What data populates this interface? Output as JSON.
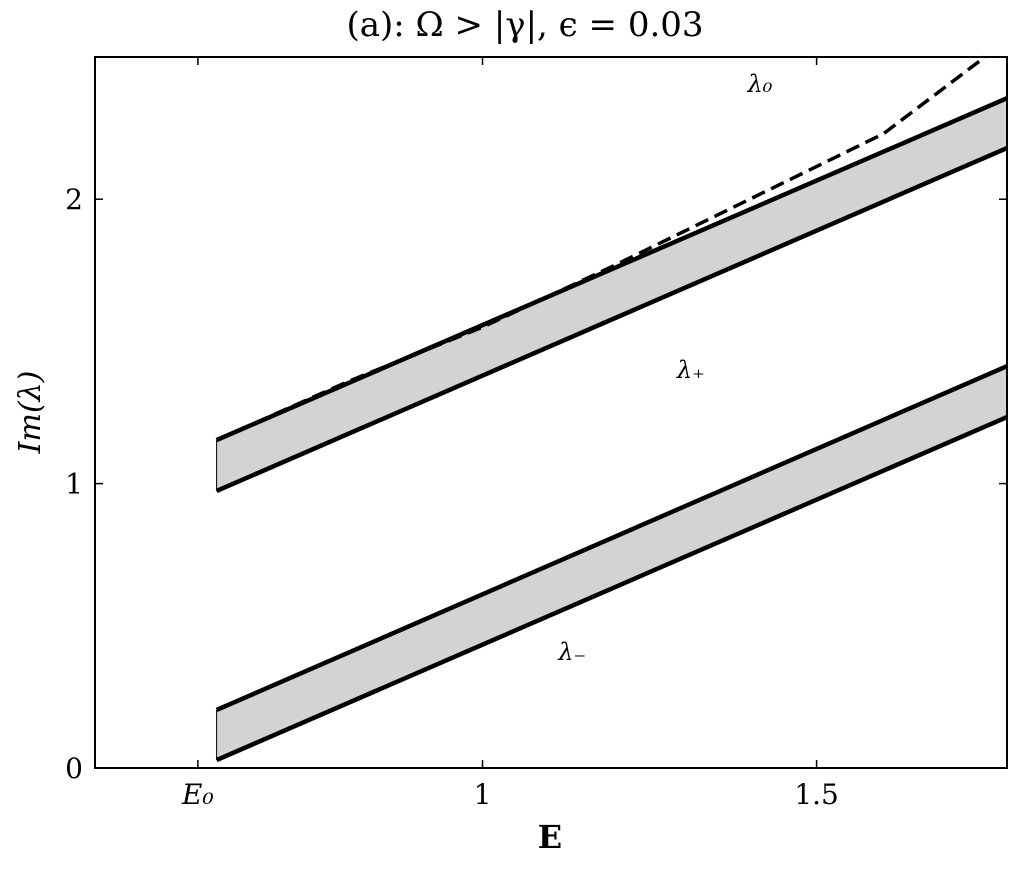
{
  "chart_data": {
    "type": "line",
    "title": "(a): Ω > |γ|, ϵ = 0.03",
    "xlabel": "E",
    "ylabel": "Im(λ)",
    "xlim": [
      0.42,
      1.785
    ],
    "ylim": [
      0,
      2.5
    ],
    "xticks": [
      {
        "value": 0.574,
        "label": "E₀"
      },
      1,
      1.5
    ],
    "yticks": [
      0,
      1,
      2
    ],
    "bands": [
      {
        "name": "λ₊",
        "color": "#d3d3d3",
        "x": [
          0.602,
          1.785
        ],
        "upper": [
          1.153,
          2.355
        ],
        "lower": [
          0.974,
          2.18
        ]
      },
      {
        "name": "λ₋",
        "color": "#d3d3d3",
        "x": [
          0.602,
          1.785
        ],
        "upper": [
          0.204,
          1.413
        ],
        "lower": [
          0.028,
          1.234
        ]
      }
    ],
    "series": [
      {
        "name": "λ₀",
        "color": "#000000",
        "dashed": true,
        "x": [
          0.602,
          0.8,
          1.0,
          1.2,
          1.4,
          1.6,
          1.752
        ],
        "values": [
          1.153,
          1.36,
          1.55,
          1.77,
          2.0,
          2.23,
          2.5
        ]
      }
    ]
  }
}
